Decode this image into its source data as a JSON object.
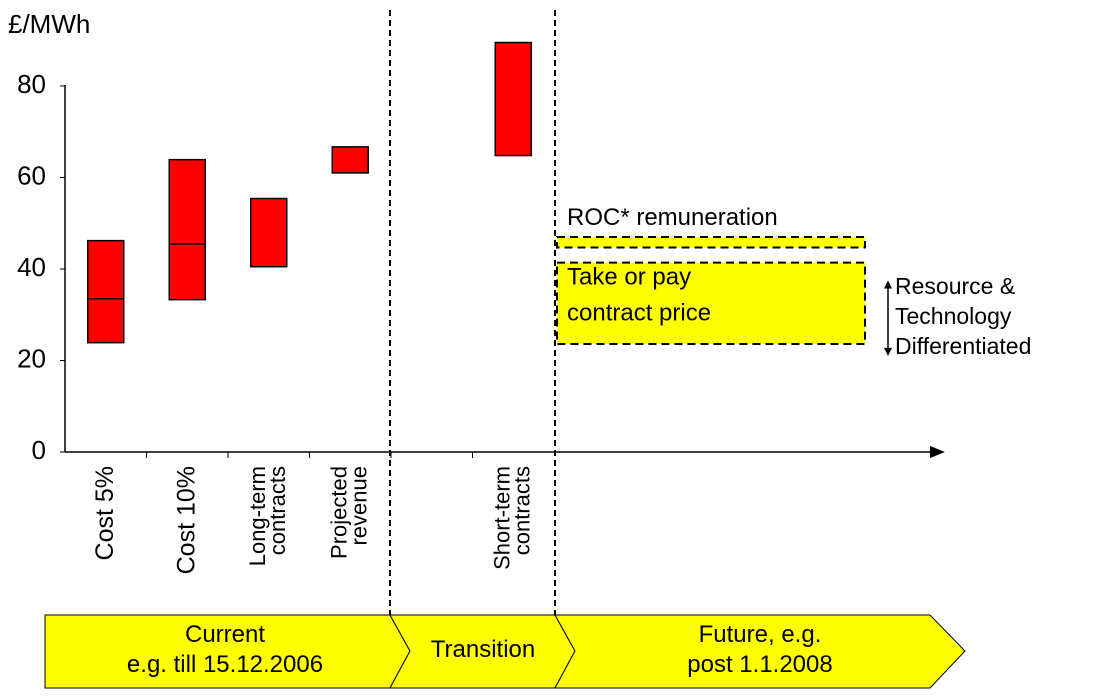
{
  "chart_data": {
    "type": "range-bar",
    "y_label": "£/MWh",
    "categories": [
      [
        "Cost 5%"
      ],
      [
        "Cost 10%"
      ],
      [
        "Long-term",
        "contracts"
      ],
      [
        "Projected",
        "revenue"
      ],
      null,
      [
        "Short-term",
        "contracts"
      ]
    ],
    "values": [
      [
        23.9,
        46.2
      ],
      [
        33.3,
        63.9
      ],
      [
        40.5,
        55.4
      ],
      [
        61,
        66.7
      ],
      null,
      [
        64.8,
        89.5
      ]
    ],
    "medians": [
      33.5,
      45.5,
      null,
      null,
      null,
      null
    ],
    "color": "#ff0000",
    "ylim": [
      0,
      80
    ],
    "yticks": [
      0,
      20,
      40,
      60,
      80
    ],
    "bands": [
      {
        "label": [
          "ROC* remuneration"
        ],
        "range": [
          44.7,
          47
        ]
      },
      {
        "label": [
          "Take or pay",
          "contract price"
        ],
        "range": [
          23.6,
          41.4
        ]
      }
    ],
    "band_color": "#ffff00",
    "annotation": {
      "label": [
        "Resource &",
        "Technology",
        "Differentiated"
      ],
      "range": [
        21,
        37.5
      ]
    },
    "phases": [
      {
        "label": [
          "Current",
          "e.g. till 15.12.2006"
        ]
      },
      {
        "label": [
          "Transition"
        ]
      },
      {
        "label": [
          "Future, e.g.",
          "post 1.1.2008"
        ]
      }
    ]
  }
}
